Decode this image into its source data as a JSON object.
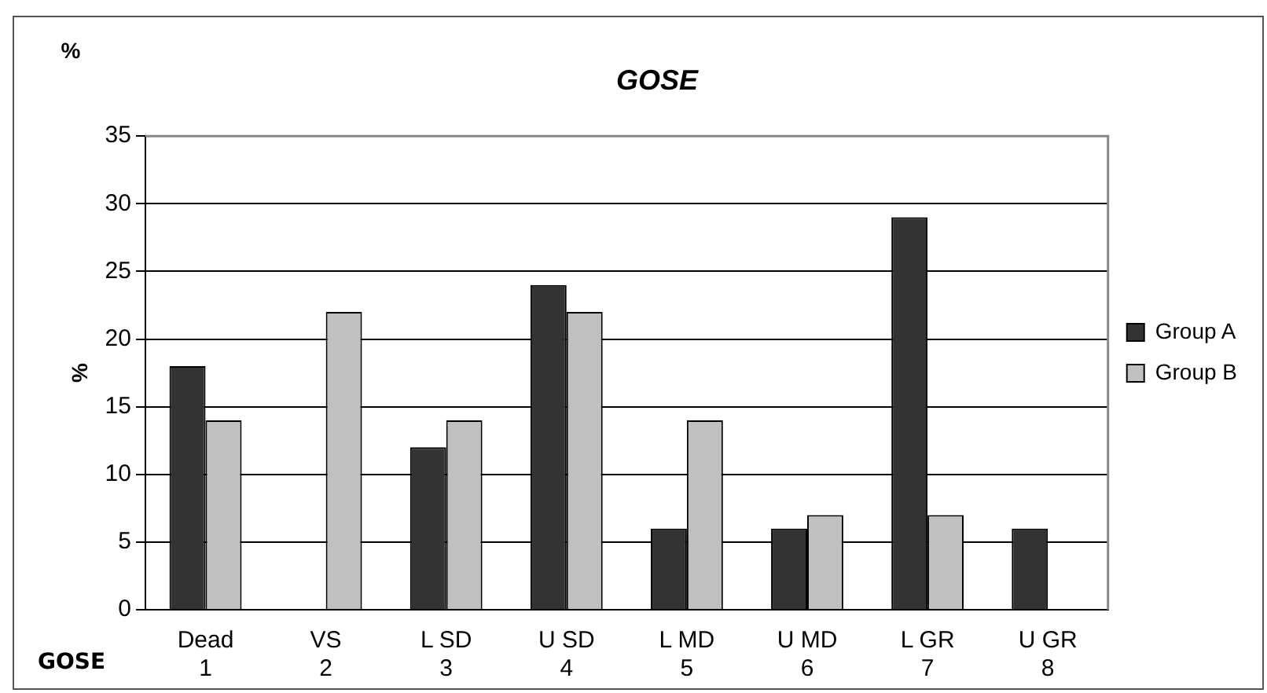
{
  "chart_data": {
    "type": "bar",
    "title": "GOSE",
    "xlabel": "GOSE",
    "ylabel": "%",
    "annotations": [
      "%"
    ],
    "categories": [
      "Dead\n1",
      "VS\n2",
      "L SD\n3",
      "U SD\n4",
      "L MD\n5",
      "U MD\n6",
      "L GR\n7",
      "U GR\n8"
    ],
    "series": [
      {
        "name": "Group A",
        "color": "#333333",
        "values": [
          18,
          0,
          12,
          24,
          6,
          6,
          29,
          6
        ]
      },
      {
        "name": "Group B",
        "color": "#c0c0c0",
        "values": [
          14,
          22,
          14,
          22,
          14,
          7,
          7,
          0
        ]
      }
    ],
    "ylim": [
      0,
      35
    ],
    "yticks": [
      0,
      5,
      10,
      15,
      20,
      25,
      30,
      35
    ],
    "grid": "y",
    "legend": "right"
  }
}
